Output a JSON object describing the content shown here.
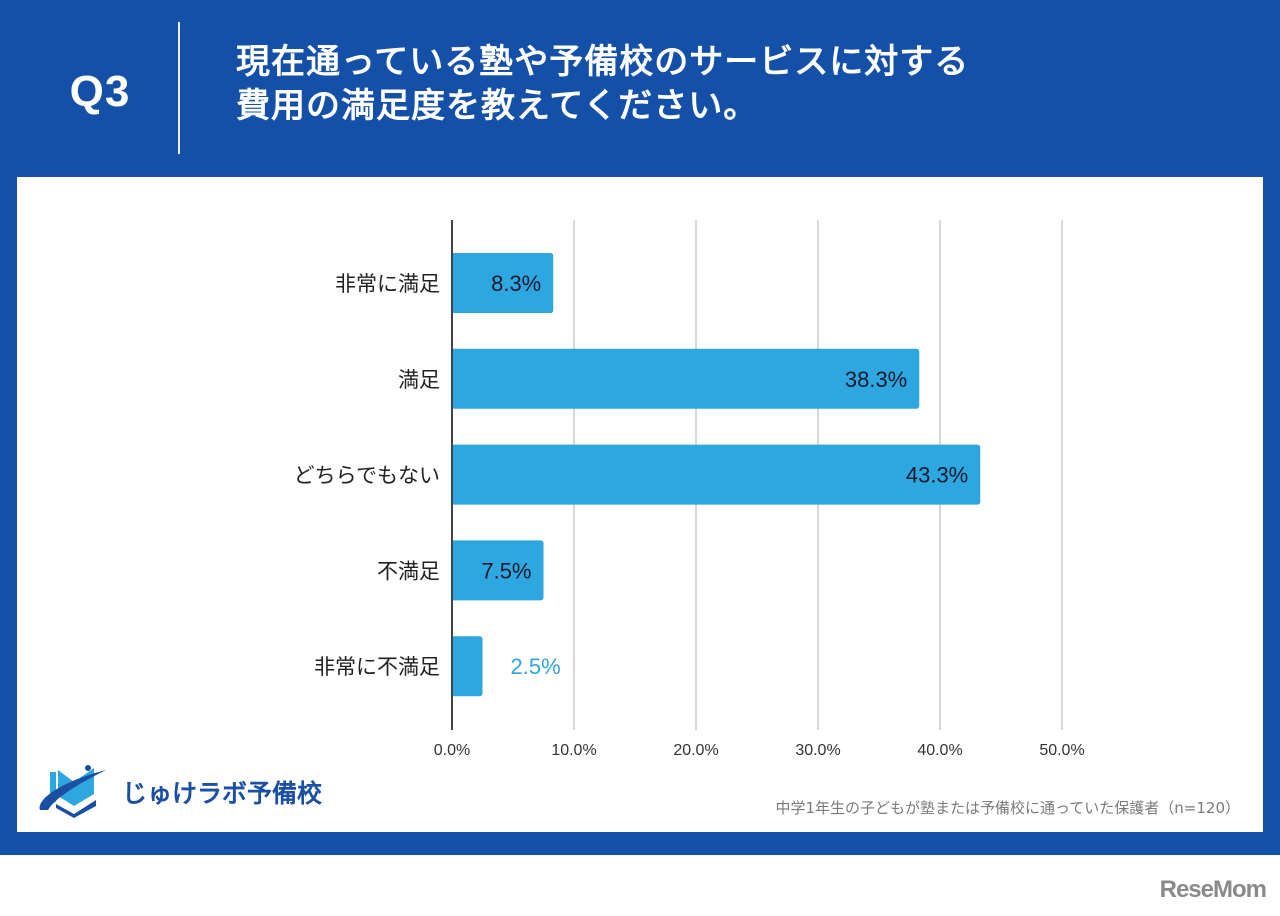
{
  "header": {
    "question_number": "Q3",
    "title_line1": "現在通っている塾や予備校のサービスに対する",
    "title_line2": "費用の満足度を教えてください。"
  },
  "colors": {
    "frame": "#1550a8",
    "bar": "#2ea6df",
    "label_inside": "#1a1a2e",
    "label_outside": "#2ea6df",
    "grid": "#cccccc",
    "axis": "#444444"
  },
  "chart_data": {
    "type": "bar",
    "orientation": "horizontal",
    "title": "現在通っている塾や予備校のサービスに対する費用の満足度を教えてください。",
    "categories": [
      "非常に満足",
      "満足",
      "どちらでもない",
      "不満足",
      "非常に不満足"
    ],
    "values": [
      8.3,
      38.3,
      43.3,
      7.5,
      2.5
    ],
    "value_labels": [
      "8.3%",
      "38.3%",
      "43.3%",
      "7.5%",
      "2.5%"
    ],
    "xlim": [
      0,
      50
    ],
    "xticks": [
      0,
      10,
      20,
      30,
      40,
      50
    ],
    "xtick_labels": [
      "0.0%",
      "10.0%",
      "20.0%",
      "30.0%",
      "40.0%",
      "50.0%"
    ],
    "xlabel": "",
    "ylabel": "",
    "grid": true,
    "legend": "none"
  },
  "logo": {
    "name": "じゅけラボ予備校",
    "icon": "open-book-orbit-icon"
  },
  "footnote": "中学1年生の子どもが塾または予備校に通っていた保護者（n=120）",
  "watermark": "ReseMom"
}
